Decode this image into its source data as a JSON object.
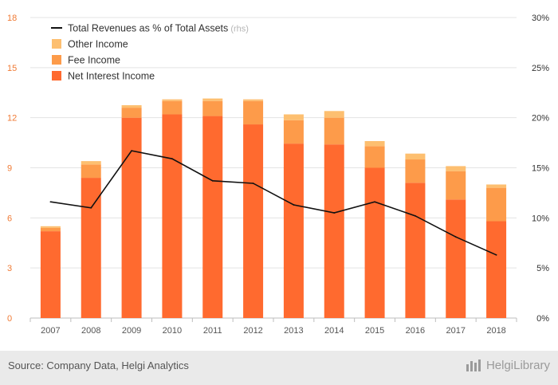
{
  "chart_data": {
    "type": "bar",
    "stacked": true,
    "categories": [
      "2007",
      "2008",
      "2009",
      "2010",
      "2011",
      "2012",
      "2013",
      "2014",
      "2015",
      "2016",
      "2017",
      "2018"
    ],
    "series": [
      {
        "name": "Net Interest Income",
        "axis": "left",
        "color": "#ff6a2f",
        "values": [
          5.2,
          8.4,
          12.0,
          12.2,
          12.1,
          11.6,
          10.45,
          10.4,
          9.0,
          8.1,
          7.1,
          5.8
        ]
      },
      {
        "name": "Fee Income",
        "axis": "left",
        "color": "#fd9b4a",
        "values": [
          0.2,
          0.8,
          0.6,
          0.8,
          0.9,
          1.4,
          1.4,
          1.6,
          1.3,
          1.4,
          1.7,
          2.0
        ]
      },
      {
        "name": "Other Income",
        "axis": "left",
        "color": "#fdbf70",
        "values": [
          0.1,
          0.2,
          0.15,
          0.1,
          0.15,
          0.1,
          0.35,
          0.4,
          0.3,
          0.35,
          0.3,
          0.2
        ]
      },
      {
        "name": "Total Revenues as % of Total Assets",
        "axis": "right",
        "type": "line",
        "color": "#111111",
        "values": [
          11.6,
          11.0,
          16.7,
          15.9,
          13.7,
          13.45,
          11.3,
          10.5,
          11.6,
          10.2,
          8.1,
          6.3
        ]
      }
    ],
    "legend": [
      {
        "label": "Total Revenues as % of Total Assets",
        "note": "(rhs)",
        "kind": "line",
        "color": "#111111"
      },
      {
        "label": "Other Income",
        "kind": "box",
        "color": "#fdbf70"
      },
      {
        "label": "Fee Income",
        "kind": "box",
        "color": "#fd9b4a"
      },
      {
        "label": "Net Interest Income",
        "kind": "box",
        "color": "#ff6a2f"
      }
    ],
    "legend_position": "top-left",
    "ylim_left": [
      0,
      18
    ],
    "yticks_left": [
      "0",
      "3",
      "6",
      "9",
      "12",
      "15",
      "18"
    ],
    "ylim_right": [
      0,
      30
    ],
    "yticks_right": [
      "0%",
      "5%",
      "10%",
      "15%",
      "20%",
      "25%",
      "30%"
    ],
    "grid": true
  },
  "footer": {
    "source": "Source: Company Data, Helgi Analytics",
    "brand": "HelgiLibrary",
    "brand_icon": "helgi-logo-icon"
  }
}
